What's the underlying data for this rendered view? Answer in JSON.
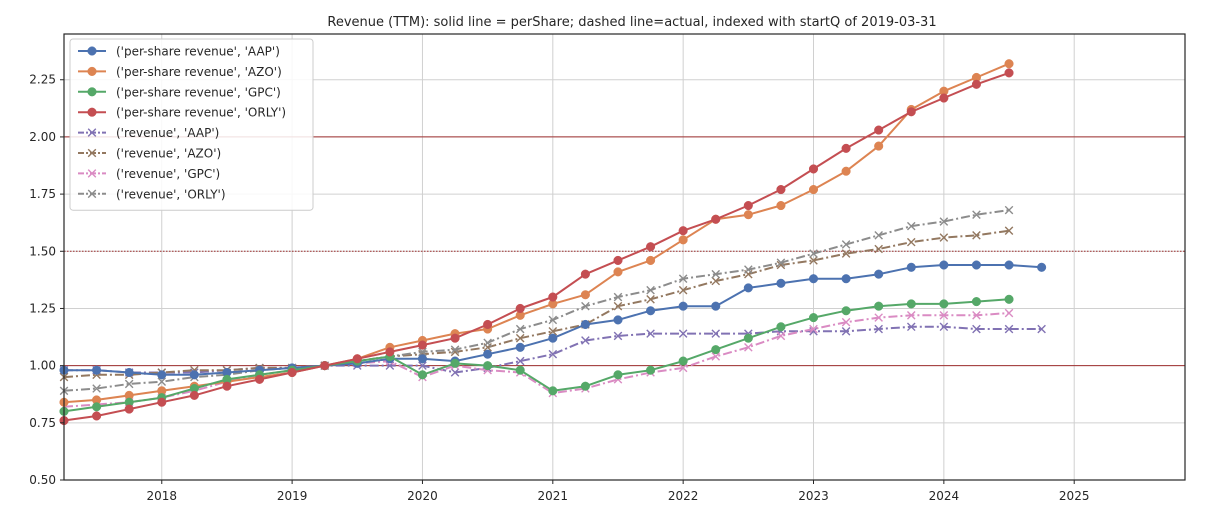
{
  "chart_data": {
    "type": "line",
    "title": "Revenue (TTM): solid line = perShare; dashed line=actual, indexed with startQ of 2019-03-31",
    "xlabel": "",
    "ylabel": "",
    "xlim": [
      2017.25,
      2025.85
    ],
    "ylim": [
      0.5,
      2.45
    ],
    "xticks": [
      2018,
      2019,
      2020,
      2021,
      2022,
      2023,
      2024,
      2025
    ],
    "xtick_labels": [
      "2018",
      "2019",
      "2020",
      "2021",
      "2022",
      "2023",
      "2024",
      "2025"
    ],
    "yticks": [
      0.5,
      0.75,
      1.0,
      1.25,
      1.5,
      1.75,
      2.0,
      2.25
    ],
    "ytick_labels": [
      "0.50",
      "0.75",
      "1.00",
      "1.25",
      "1.50",
      "1.75",
      "2.00",
      "2.25"
    ],
    "grid": true,
    "legend_position": "upper-left",
    "reference_lines": [
      {
        "y": 1.0,
        "style": "solid",
        "color": "#a03030"
      },
      {
        "y": 1.5,
        "style": "dotted",
        "color": "#a03030"
      },
      {
        "y": 2.0,
        "style": "solid",
        "color": "#a03030"
      }
    ],
    "series": [
      {
        "name": "('per-share revenue', 'AAP')",
        "color": "#4c72b0",
        "linestyle": "solid",
        "marker": "circle",
        "x": [
          2017.25,
          2017.5,
          2017.75,
          2018.0,
          2018.25,
          2018.5,
          2018.75,
          2019.0,
          2019.25,
          2019.5,
          2019.75,
          2020.0,
          2020.25,
          2020.5,
          2020.75,
          2021.0,
          2021.25,
          2021.5,
          2021.75,
          2022.0,
          2022.25,
          2022.5,
          2022.75,
          2023.0,
          2023.25,
          2023.5,
          2023.75,
          2024.0,
          2024.25,
          2024.5,
          2024.75
        ],
        "values": [
          0.98,
          0.98,
          0.97,
          0.96,
          0.96,
          0.97,
          0.98,
          0.99,
          1.0,
          1.01,
          1.03,
          1.03,
          1.02,
          1.05,
          1.08,
          1.12,
          1.18,
          1.2,
          1.24,
          1.26,
          1.26,
          1.34,
          1.36,
          1.38,
          1.38,
          1.4,
          1.43,
          1.44,
          1.44,
          1.44,
          1.43
        ]
      },
      {
        "name": "('per-share revenue', 'AZO')",
        "color": "#dd8452",
        "linestyle": "solid",
        "marker": "circle",
        "x": [
          2017.25,
          2017.5,
          2017.75,
          2018.0,
          2018.25,
          2018.5,
          2018.75,
          2019.0,
          2019.25,
          2019.5,
          2019.75,
          2020.0,
          2020.25,
          2020.5,
          2020.75,
          2021.0,
          2021.25,
          2021.5,
          2021.75,
          2022.0,
          2022.25,
          2022.5,
          2022.75,
          2023.0,
          2023.25,
          2023.5,
          2023.75,
          2024.0,
          2024.25,
          2024.5
        ],
        "values": [
          0.84,
          0.85,
          0.87,
          0.89,
          0.91,
          0.93,
          0.95,
          0.97,
          1.0,
          1.03,
          1.08,
          1.11,
          1.14,
          1.16,
          1.22,
          1.27,
          1.31,
          1.41,
          1.46,
          1.55,
          1.64,
          1.66,
          1.7,
          1.77,
          1.85,
          1.96,
          2.12,
          2.2,
          2.26,
          2.32
        ]
      },
      {
        "name": "('per-share revenue', 'GPC')",
        "color": "#55a868",
        "linestyle": "solid",
        "marker": "circle",
        "x": [
          2017.25,
          2017.5,
          2017.75,
          2018.0,
          2018.25,
          2018.5,
          2018.75,
          2019.0,
          2019.25,
          2019.5,
          2019.75,
          2020.0,
          2020.25,
          2020.5,
          2020.75,
          2021.0,
          2021.25,
          2021.5,
          2021.75,
          2022.0,
          2022.25,
          2022.5,
          2022.75,
          2023.0,
          2023.25,
          2023.5,
          2023.75,
          2024.0,
          2024.25,
          2024.5
        ],
        "values": [
          0.8,
          0.82,
          0.84,
          0.86,
          0.9,
          0.94,
          0.96,
          0.98,
          1.0,
          1.02,
          1.04,
          0.96,
          1.01,
          1.0,
          0.98,
          0.89,
          0.91,
          0.96,
          0.98,
          1.02,
          1.07,
          1.12,
          1.17,
          1.21,
          1.24,
          1.26,
          1.27,
          1.27,
          1.28,
          1.29
        ]
      },
      {
        "name": "('per-share revenue', 'ORLY')",
        "color": "#c44e52",
        "linestyle": "solid",
        "marker": "circle",
        "x": [
          2017.25,
          2017.5,
          2017.75,
          2018.0,
          2018.25,
          2018.5,
          2018.75,
          2019.0,
          2019.25,
          2019.5,
          2019.75,
          2020.0,
          2020.25,
          2020.5,
          2020.75,
          2021.0,
          2021.25,
          2021.5,
          2021.75,
          2022.0,
          2022.25,
          2022.5,
          2022.75,
          2023.0,
          2023.25,
          2023.5,
          2023.75,
          2024.0,
          2024.25,
          2024.5
        ],
        "values": [
          0.76,
          0.78,
          0.81,
          0.84,
          0.87,
          0.91,
          0.94,
          0.97,
          1.0,
          1.03,
          1.06,
          1.09,
          1.12,
          1.18,
          1.25,
          1.3,
          1.4,
          1.46,
          1.52,
          1.59,
          1.64,
          1.7,
          1.77,
          1.86,
          1.95,
          2.03,
          2.11,
          2.17,
          2.23,
          2.28
        ]
      },
      {
        "name": "('revenue', 'AAP')",
        "color": "#8172b3",
        "linestyle": "dashdot",
        "marker": "x",
        "x": [
          2017.25,
          2017.5,
          2017.75,
          2018.0,
          2018.25,
          2018.5,
          2018.75,
          2019.0,
          2019.25,
          2019.5,
          2019.75,
          2020.0,
          2020.25,
          2020.5,
          2020.75,
          2021.0,
          2021.25,
          2021.5,
          2021.75,
          2022.0,
          2022.25,
          2022.5,
          2022.75,
          2023.0,
          2023.25,
          2023.5,
          2023.75,
          2024.0,
          2024.25,
          2024.5,
          2024.75
        ],
        "values": [
          0.98,
          0.98,
          0.97,
          0.97,
          0.97,
          0.98,
          0.99,
          0.99,
          1.0,
          1.0,
          1.0,
          1.0,
          0.97,
          0.99,
          1.02,
          1.05,
          1.11,
          1.13,
          1.14,
          1.14,
          1.14,
          1.14,
          1.15,
          1.15,
          1.15,
          1.16,
          1.17,
          1.17,
          1.16,
          1.16,
          1.16
        ]
      },
      {
        "name": "('revenue', 'AZO')",
        "color": "#937860",
        "linestyle": "dashdot",
        "marker": "x",
        "x": [
          2017.25,
          2017.5,
          2017.75,
          2018.0,
          2018.25,
          2018.5,
          2018.75,
          2019.0,
          2019.25,
          2019.5,
          2019.75,
          2020.0,
          2020.25,
          2020.5,
          2020.75,
          2021.0,
          2021.25,
          2021.5,
          2021.75,
          2022.0,
          2022.25,
          2022.5,
          2022.75,
          2023.0,
          2023.25,
          2023.5,
          2023.75,
          2024.0,
          2024.25,
          2024.5
        ],
        "values": [
          0.95,
          0.96,
          0.96,
          0.97,
          0.98,
          0.98,
          0.99,
          0.99,
          1.0,
          1.02,
          1.04,
          1.05,
          1.06,
          1.08,
          1.12,
          1.15,
          1.18,
          1.26,
          1.29,
          1.33,
          1.37,
          1.4,
          1.44,
          1.46,
          1.49,
          1.51,
          1.54,
          1.56,
          1.57,
          1.59
        ]
      },
      {
        "name": "('revenue', 'GPC')",
        "color": "#da8bc3",
        "linestyle": "dashdot",
        "marker": "x",
        "x": [
          2017.25,
          2017.5,
          2017.75,
          2018.0,
          2018.25,
          2018.5,
          2018.75,
          2019.0,
          2019.25,
          2019.5,
          2019.75,
          2020.0,
          2020.25,
          2020.5,
          2020.75,
          2021.0,
          2021.25,
          2021.5,
          2021.75,
          2022.0,
          2022.25,
          2022.5,
          2022.75,
          2023.0,
          2023.25,
          2023.5,
          2023.75,
          2024.0,
          2024.25,
          2024.5
        ],
        "values": [
          0.82,
          0.83,
          0.84,
          0.86,
          0.89,
          0.93,
          0.96,
          0.98,
          1.0,
          1.01,
          1.02,
          0.95,
          1.0,
          0.98,
          0.97,
          0.88,
          0.9,
          0.94,
          0.97,
          0.99,
          1.04,
          1.08,
          1.13,
          1.16,
          1.19,
          1.21,
          1.22,
          1.22,
          1.22,
          1.23
        ]
      },
      {
        "name": "('revenue', 'ORLY')",
        "color": "#8c8c8c",
        "linestyle": "dashdot",
        "marker": "x",
        "x": [
          2017.25,
          2017.5,
          2017.75,
          2018.0,
          2018.25,
          2018.5,
          2018.75,
          2019.0,
          2019.25,
          2019.5,
          2019.75,
          2020.0,
          2020.25,
          2020.5,
          2020.75,
          2021.0,
          2021.25,
          2021.5,
          2021.75,
          2022.0,
          2022.25,
          2022.5,
          2022.75,
          2023.0,
          2023.25,
          2023.5,
          2023.75,
          2024.0,
          2024.25,
          2024.5
        ],
        "values": [
          0.89,
          0.9,
          0.92,
          0.93,
          0.95,
          0.96,
          0.98,
          0.99,
          1.0,
          1.02,
          1.04,
          1.06,
          1.07,
          1.1,
          1.16,
          1.2,
          1.26,
          1.3,
          1.33,
          1.38,
          1.4,
          1.42,
          1.45,
          1.49,
          1.53,
          1.57,
          1.61,
          1.63,
          1.66,
          1.68
        ]
      }
    ]
  }
}
